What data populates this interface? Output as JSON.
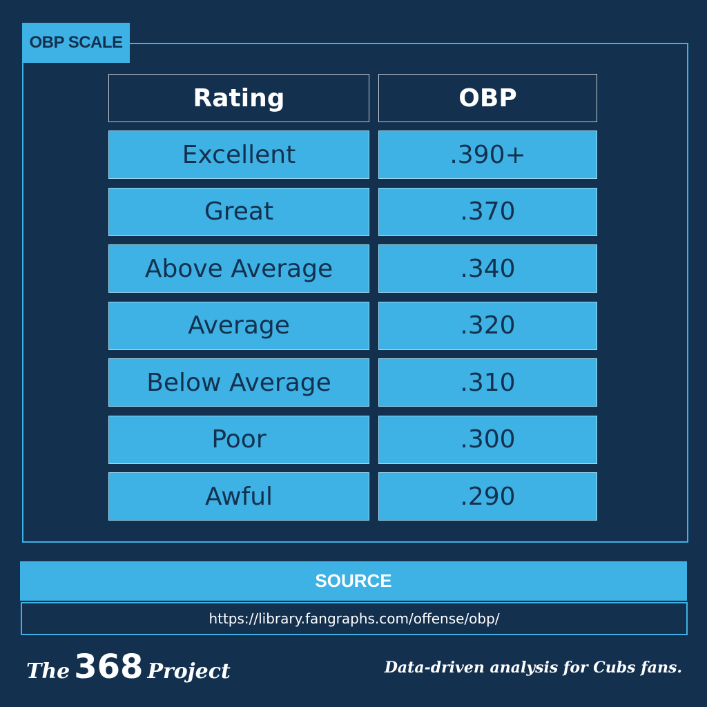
{
  "tag": "OBP SCALE",
  "table": {
    "header": [
      "Rating",
      "OBP"
    ],
    "rows": [
      [
        "Excellent",
        ".390+"
      ],
      [
        "Great",
        ".370"
      ],
      [
        "Above Average",
        ".340"
      ],
      [
        "Average",
        ".320"
      ],
      [
        "Below Average",
        ".310"
      ],
      [
        "Poor",
        ".300"
      ],
      [
        "Awful",
        ".290"
      ]
    ]
  },
  "source": {
    "label": "SOURCE",
    "url": "https://library.fangraphs.com/offense/obp/"
  },
  "footer": {
    "logo": [
      "The",
      "368",
      "Project"
    ],
    "tagline": "Data-driven analysis for Cubs fans."
  }
}
